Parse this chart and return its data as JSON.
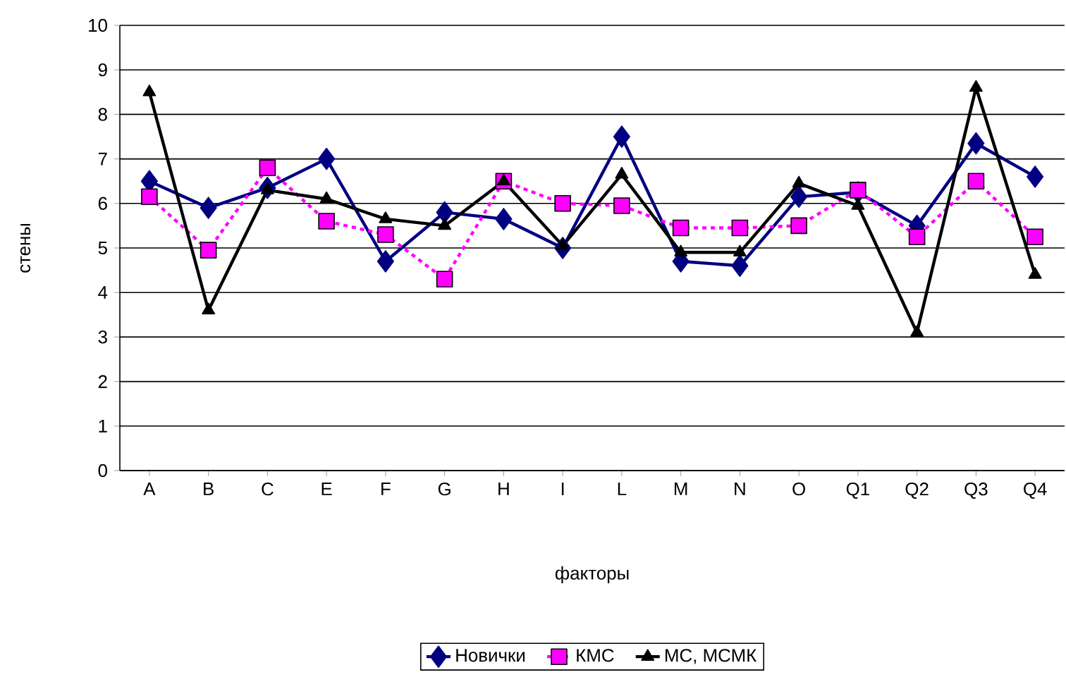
{
  "chart_data": {
    "type": "line",
    "xlabel": "факторы",
    "ylabel": "стены",
    "categories": [
      "A",
      "B",
      "C",
      "E",
      "F",
      "G",
      "H",
      "I",
      "L",
      "M",
      "N",
      "O",
      "Q1",
      "Q2",
      "Q3",
      "Q4"
    ],
    "series": [
      {
        "name": "Новички",
        "color": "#000080",
        "marker": "diamond",
        "line_style": "solid",
        "values": [
          6.5,
          5.9,
          6.35,
          7.0,
          4.7,
          5.8,
          5.65,
          5.0,
          7.5,
          4.7,
          4.6,
          6.15,
          6.25,
          5.5,
          7.35,
          6.6
        ]
      },
      {
        "name": "КМС",
        "color": "#ff00ff",
        "marker": "square",
        "line_style": "dashed",
        "values": [
          6.15,
          4.95,
          6.8,
          5.6,
          5.3,
          4.3,
          6.5,
          6.0,
          5.95,
          5.45,
          5.45,
          5.5,
          6.3,
          5.25,
          6.5,
          5.25
        ]
      },
      {
        "name": "МС, МСМК",
        "color": "#000000",
        "marker": "triangle",
        "line_style": "solid",
        "values": [
          8.5,
          3.6,
          6.3,
          6.1,
          5.65,
          5.5,
          6.5,
          5.05,
          6.65,
          4.9,
          4.9,
          6.45,
          5.95,
          3.1,
          8.6,
          4.4
        ]
      }
    ],
    "ylim": [
      0,
      10
    ],
    "yticks": [
      0,
      1,
      2,
      3,
      4,
      5,
      6,
      7,
      8,
      9,
      10
    ],
    "grid": "y",
    "legend": "bottom"
  }
}
